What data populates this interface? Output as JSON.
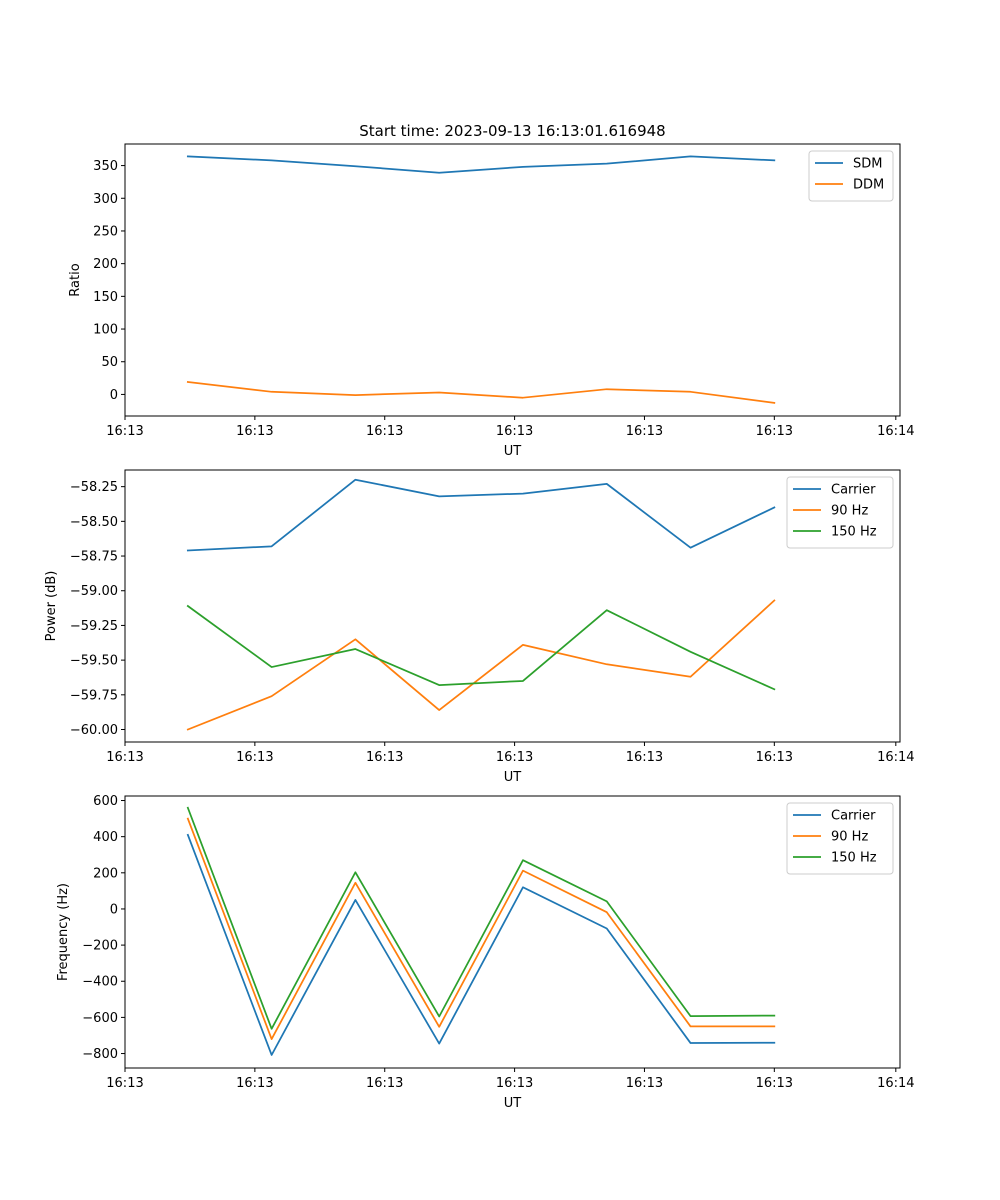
{
  "chart_data": [
    {
      "type": "line",
      "title": "Start time: 2023-09-13 16:13:01.616948",
      "xlabel": "UT",
      "ylabel": "Ratio",
      "x_tick_labels": [
        "16:13",
        "16:13",
        "16:13",
        "16:13",
        "16:13",
        "16:13",
        "16:14"
      ],
      "xlim": [
        -0.75,
        8.5
      ],
      "ylim": [
        -33,
        383
      ],
      "yticks": [
        0,
        50,
        100,
        150,
        200,
        250,
        300,
        350
      ],
      "y_tick_labels": [
        "0",
        "50",
        "100",
        "150",
        "200",
        "250",
        "300",
        "350"
      ],
      "x": [
        0,
        1,
        2,
        3,
        4,
        5,
        6,
        7
      ],
      "legend_location": "upper right",
      "series": [
        {
          "name": "SDM",
          "color": "#1f77b4",
          "values": [
            364,
            358,
            349,
            339,
            348,
            353,
            364,
            358
          ]
        },
        {
          "name": "DDM",
          "color": "#ff7f0e",
          "values": [
            19,
            4,
            -1,
            3,
            -5,
            8,
            4,
            -13
          ]
        }
      ]
    },
    {
      "type": "line",
      "title": "",
      "xlabel": "UT",
      "ylabel": "Power (dB)",
      "x_tick_labels": [
        "16:13",
        "16:13",
        "16:13",
        "16:13",
        "16:13",
        "16:13",
        "16:14"
      ],
      "xlim": [
        -0.75,
        8.5
      ],
      "ylim": [
        -60.09,
        -58.13
      ],
      "yticks": [
        -60.0,
        -59.75,
        -59.5,
        -59.25,
        -59.0,
        -58.75,
        -58.5,
        -58.25
      ],
      "y_tick_labels": [
        "−60.00",
        "−59.75",
        "−59.50",
        "−59.25",
        "−59.00",
        "−58.75",
        "−58.50",
        "−58.25"
      ],
      "x": [
        0,
        1,
        2,
        3,
        4,
        5,
        6,
        7
      ],
      "legend_location": "upper right",
      "series": [
        {
          "name": "Carrier",
          "color": "#1f77b4",
          "values": [
            -58.71,
            -58.68,
            -58.2,
            -58.32,
            -58.3,
            -58.23,
            -58.69,
            -58.4
          ]
        },
        {
          "name": "90 Hz",
          "color": "#ff7f0e",
          "values": [
            -60.0,
            -59.76,
            -59.35,
            -59.86,
            -59.39,
            -59.53,
            -59.62,
            -59.07
          ]
        },
        {
          "name": "150 Hz",
          "color": "#2ca02c",
          "values": [
            -59.11,
            -59.55,
            -59.42,
            -59.68,
            -59.65,
            -59.14,
            -59.44,
            -59.71
          ]
        }
      ]
    },
    {
      "type": "line",
      "title": "",
      "xlabel": "UT",
      "ylabel": "Frequency (Hz)",
      "x_tick_labels": [
        "16:13",
        "16:13",
        "16:13",
        "16:13",
        "16:13",
        "16:13",
        "16:14"
      ],
      "xlim": [
        -0.75,
        8.5
      ],
      "ylim": [
        -880,
        625
      ],
      "yticks": [
        -800,
        -600,
        -400,
        -200,
        0,
        200,
        400,
        600
      ],
      "y_tick_labels": [
        "−800",
        "−600",
        "−400",
        "−200",
        "0",
        "200",
        "400",
        "600"
      ],
      "x": [
        0,
        1,
        2,
        3,
        4,
        5,
        6,
        7
      ],
      "legend_location": "upper right",
      "series": [
        {
          "name": "Carrier",
          "color": "#1f77b4",
          "values": [
            410,
            -808,
            50,
            -745,
            120,
            -108,
            -742,
            -740
          ]
        },
        {
          "name": "90 Hz",
          "color": "#ff7f0e",
          "values": [
            500,
            -720,
            145,
            -652,
            212,
            -18,
            -650,
            -650
          ]
        },
        {
          "name": "150 Hz",
          "color": "#2ca02c",
          "values": [
            560,
            -663,
            203,
            -595,
            270,
            42,
            -593,
            -590
          ]
        }
      ]
    }
  ]
}
